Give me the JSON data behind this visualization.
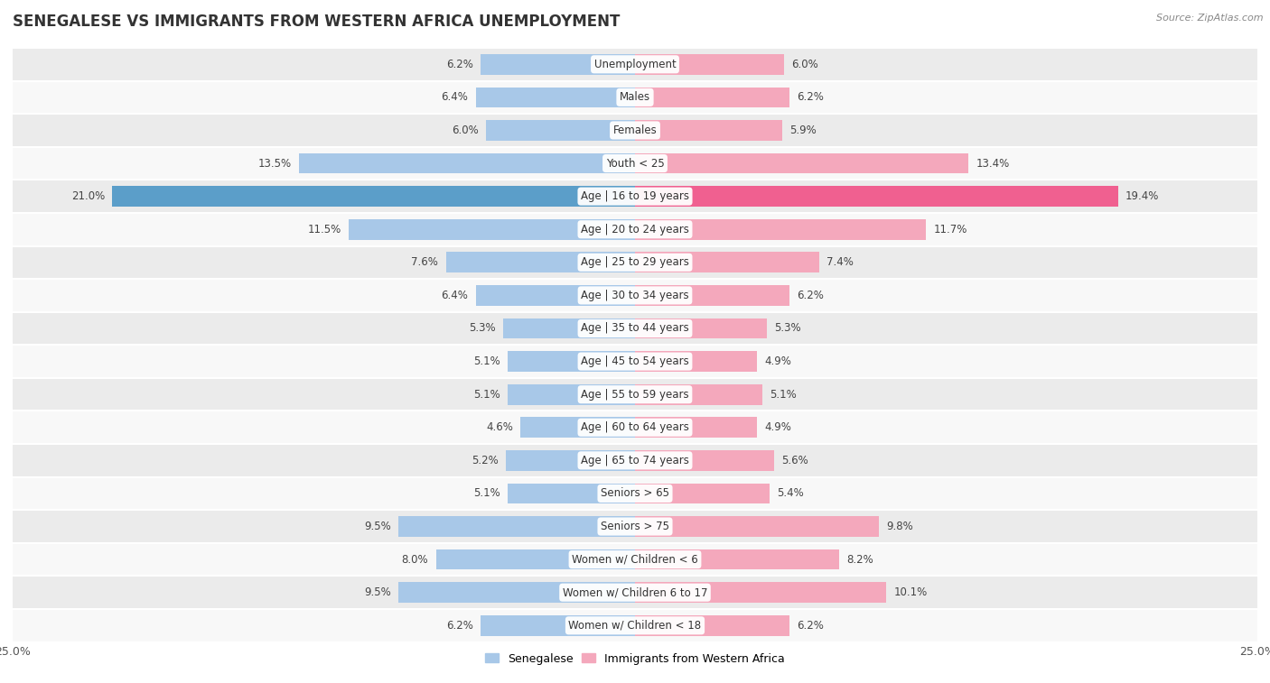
{
  "title": "SENEGALESE VS IMMIGRANTS FROM WESTERN AFRICA UNEMPLOYMENT",
  "source": "Source: ZipAtlas.com",
  "categories": [
    "Unemployment",
    "Males",
    "Females",
    "Youth < 25",
    "Age | 16 to 19 years",
    "Age | 20 to 24 years",
    "Age | 25 to 29 years",
    "Age | 30 to 34 years",
    "Age | 35 to 44 years",
    "Age | 45 to 54 years",
    "Age | 55 to 59 years",
    "Age | 60 to 64 years",
    "Age | 65 to 74 years",
    "Seniors > 65",
    "Seniors > 75",
    "Women w/ Children < 6",
    "Women w/ Children 6 to 17",
    "Women w/ Children < 18"
  ],
  "senegalese": [
    6.2,
    6.4,
    6.0,
    13.5,
    21.0,
    11.5,
    7.6,
    6.4,
    5.3,
    5.1,
    5.1,
    4.6,
    5.2,
    5.1,
    9.5,
    8.0,
    9.5,
    6.2
  ],
  "immigrants": [
    6.0,
    6.2,
    5.9,
    13.4,
    19.4,
    11.7,
    7.4,
    6.2,
    5.3,
    4.9,
    5.1,
    4.9,
    5.6,
    5.4,
    9.8,
    8.2,
    10.1,
    6.2
  ],
  "senegalese_color": "#a8c8e8",
  "immigrants_color": "#f4a8bc",
  "highlight_senegalese_color": "#5b9ec9",
  "highlight_immigrants_color": "#f06090",
  "highlight_row": 4,
  "bar_height": 0.62,
  "xlim": 25.0,
  "bg_color_odd": "#ebebeb",
  "bg_color_even": "#f8f8f8",
  "legend_label_1": "Senegalese",
  "legend_label_2": "Immigrants from Western Africa",
  "title_fontsize": 12,
  "label_fontsize": 8.5,
  "value_fontsize": 8.5,
  "axis_label_fontsize": 9
}
